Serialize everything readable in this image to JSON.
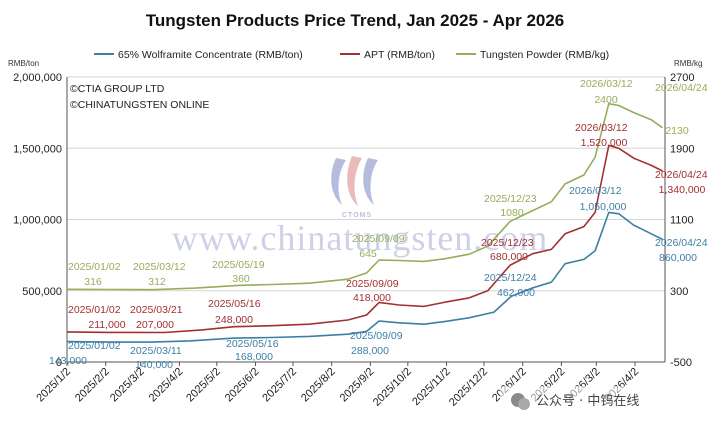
{
  "chart_data": {
    "type": "line",
    "title": "Tungsten Products Price Trend, Jan 2025 - Apr 2026",
    "left_axis_unit": "RMB/ton",
    "right_axis_unit": "RMB/kg",
    "ylim_left": [
      0,
      2000000
    ],
    "ylim_right": [
      -500,
      2700
    ],
    "left_ticks": [
      "0",
      "500,000",
      "1,000,000",
      "1,500,000",
      "2,000,000"
    ],
    "right_ticks": [
      "-500",
      "300",
      "1100",
      "1900",
      "2700"
    ],
    "x_labels": [
      "2025/1/2",
      "2025/2/2",
      "2025/3/2",
      "2025/4/2",
      "2025/5/2",
      "2025/6/2",
      "2025/7/2",
      "2025/8/2",
      "2025/9/2",
      "2025/10/2",
      "2025/11/2",
      "2025/12/2",
      "2026/1/2",
      "2026/2/2",
      "2026/3/2",
      "2026/4/2"
    ],
    "x_range": [
      "2025-01-02",
      "2026-04-26"
    ],
    "grid": "horizontal",
    "legend_position": "top",
    "credits": [
      "©CTIA GROUP LTD",
      "©CHINATUNGSTEN ONLINE"
    ],
    "watermark": {
      "text": "www.chinatungsten.com",
      "logo_text": "CTOMS"
    },
    "badge": "公众号 · 中钨在线",
    "series": [
      {
        "name": "65% Wolframite Concentrate (RMB/ton)",
        "color": "#3c7fa6",
        "axis": "left",
        "points": [
          [
            "2025-01-02",
            143000
          ],
          [
            "2025-02-05",
            140000
          ],
          [
            "2025-03-11",
            140000
          ],
          [
            "2025-04-10",
            148000
          ],
          [
            "2025-05-16",
            168000
          ],
          [
            "2025-06-15",
            172000
          ],
          [
            "2025-07-15",
            180000
          ],
          [
            "2025-08-15",
            195000
          ],
          [
            "2025-08-30",
            215000
          ],
          [
            "2025-09-09",
            288000
          ],
          [
            "2025-09-25",
            275000
          ],
          [
            "2025-10-15",
            265000
          ],
          [
            "2025-11-01",
            285000
          ],
          [
            "2025-11-20",
            310000
          ],
          [
            "2025-12-10",
            350000
          ],
          [
            "2025-12-24",
            462000
          ],
          [
            "2026-01-10",
            520000
          ],
          [
            "2026-01-25",
            560000
          ],
          [
            "2026-02-05",
            690000
          ],
          [
            "2026-02-20",
            720000
          ],
          [
            "2026-03-01",
            780000
          ],
          [
            "2026-03-12",
            1050000
          ],
          [
            "2026-03-20",
            1040000
          ],
          [
            "2026-04-01",
            960000
          ],
          [
            "2026-04-15",
            900000
          ],
          [
            "2026-04-24",
            860000
          ]
        ]
      },
      {
        "name": "APT (RMB/ton)",
        "color": "#a33030",
        "axis": "left",
        "points": [
          [
            "2025-01-02",
            211000
          ],
          [
            "2025-02-05",
            208000
          ],
          [
            "2025-03-21",
            207000
          ],
          [
            "2025-04-20",
            225000
          ],
          [
            "2025-05-16",
            248000
          ],
          [
            "2025-06-15",
            255000
          ],
          [
            "2025-07-15",
            265000
          ],
          [
            "2025-08-15",
            295000
          ],
          [
            "2025-08-30",
            330000
          ],
          [
            "2025-09-09",
            418000
          ],
          [
            "2025-09-25",
            400000
          ],
          [
            "2025-10-15",
            390000
          ],
          [
            "2025-11-01",
            420000
          ],
          [
            "2025-11-20",
            450000
          ],
          [
            "2025-12-05",
            500000
          ],
          [
            "2025-12-23",
            680000
          ],
          [
            "2026-01-10",
            760000
          ],
          [
            "2026-01-25",
            790000
          ],
          [
            "2026-02-05",
            900000
          ],
          [
            "2026-02-20",
            950000
          ],
          [
            "2026-03-01",
            1050000
          ],
          [
            "2026-03-12",
            1520000
          ],
          [
            "2026-03-20",
            1500000
          ],
          [
            "2026-04-01",
            1430000
          ],
          [
            "2026-04-15",
            1380000
          ],
          [
            "2026-04-24",
            1340000
          ]
        ]
      },
      {
        "name": "Tungsten Powder (RMB/kg)",
        "color": "#96ad5c",
        "axis": "right",
        "points": [
          [
            "2025-01-02",
            316
          ],
          [
            "2025-02-05",
            314
          ],
          [
            "2025-03-12",
            312
          ],
          [
            "2025-04-15",
            330
          ],
          [
            "2025-05-19",
            360
          ],
          [
            "2025-06-15",
            370
          ],
          [
            "2025-07-15",
            385
          ],
          [
            "2025-08-15",
            430
          ],
          [
            "2025-08-30",
            500
          ],
          [
            "2025-09-09",
            645
          ],
          [
            "2025-09-25",
            640
          ],
          [
            "2025-10-15",
            630
          ],
          [
            "2025-11-01",
            660
          ],
          [
            "2025-11-20",
            710
          ],
          [
            "2025-12-05",
            800
          ],
          [
            "2025-12-23",
            1080
          ],
          [
            "2026-01-10",
            1200
          ],
          [
            "2026-01-25",
            1300
          ],
          [
            "2026-02-05",
            1500
          ],
          [
            "2026-02-20",
            1600
          ],
          [
            "2026-03-01",
            1800
          ],
          [
            "2026-03-12",
            2400
          ],
          [
            "2026-03-20",
            2380
          ],
          [
            "2026-04-01",
            2300
          ],
          [
            "2026-04-15",
            2220
          ],
          [
            "2026-04-24",
            2130
          ]
        ]
      }
    ],
    "annotations": [
      {
        "text": "2025/01/02",
        "series": "powder"
      },
      {
        "text": "316",
        "series": "powder"
      },
      {
        "text": "2025/03/12",
        "series": "powder"
      },
      {
        "text": "312",
        "series": "powder"
      },
      {
        "text": "2025/05/19",
        "series": "powder"
      },
      {
        "text": "360",
        "series": "powder"
      },
      {
        "text": "2025/09/09",
        "series": "powder"
      },
      {
        "text": "645",
        "series": "powder"
      },
      {
        "text": "2025/12/23",
        "series": "powder"
      },
      {
        "text": "1080",
        "series": "powder"
      },
      {
        "text": "2026/03/12",
        "series": "powder"
      },
      {
        "text": "2400",
        "series": "powder"
      },
      {
        "text": "2026/04/24",
        "series": "powder"
      },
      {
        "text": "2130",
        "series": "powder"
      },
      {
        "text": "2025/01/02",
        "series": "apt"
      },
      {
        "text": "211,000",
        "series": "apt"
      },
      {
        "text": "2025/03/21",
        "series": "apt"
      },
      {
        "text": "207,000",
        "series": "apt"
      },
      {
        "text": "2025/05/16",
        "series": "apt"
      },
      {
        "text": "248,000",
        "series": "apt"
      },
      {
        "text": "2025/09/09",
        "series": "apt"
      },
      {
        "text": "418,000",
        "series": "apt"
      },
      {
        "text": "2025/12/23",
        "series": "apt"
      },
      {
        "text": "680,000",
        "series": "apt"
      },
      {
        "text": "2026/03/12",
        "series": "apt"
      },
      {
        "text": "1,520,000",
        "series": "apt"
      },
      {
        "text": "2026/04/24",
        "series": "apt"
      },
      {
        "text": "1,340,000",
        "series": "apt"
      },
      {
        "text": "2025/01/02",
        "series": "wolf"
      },
      {
        "text": "143,000",
        "series": "wolf"
      },
      {
        "text": "2025/03/11",
        "series": "wolf"
      },
      {
        "text": "140,000",
        "series": "wolf"
      },
      {
        "text": "2025/05/16",
        "series": "wolf"
      },
      {
        "text": "168,000",
        "series": "wolf"
      },
      {
        "text": "2025/09/09",
        "series": "wolf"
      },
      {
        "text": "288,000",
        "series": "wolf"
      },
      {
        "text": "2025/12/24",
        "series": "wolf"
      },
      {
        "text": "462,000",
        "series": "wolf"
      },
      {
        "text": "2026/03/12",
        "series": "wolf"
      },
      {
        "text": "1,050,000",
        "series": "wolf"
      },
      {
        "text": "2026/04/24",
        "series": "wolf"
      },
      {
        "text": "860,000",
        "series": "wolf"
      }
    ]
  }
}
